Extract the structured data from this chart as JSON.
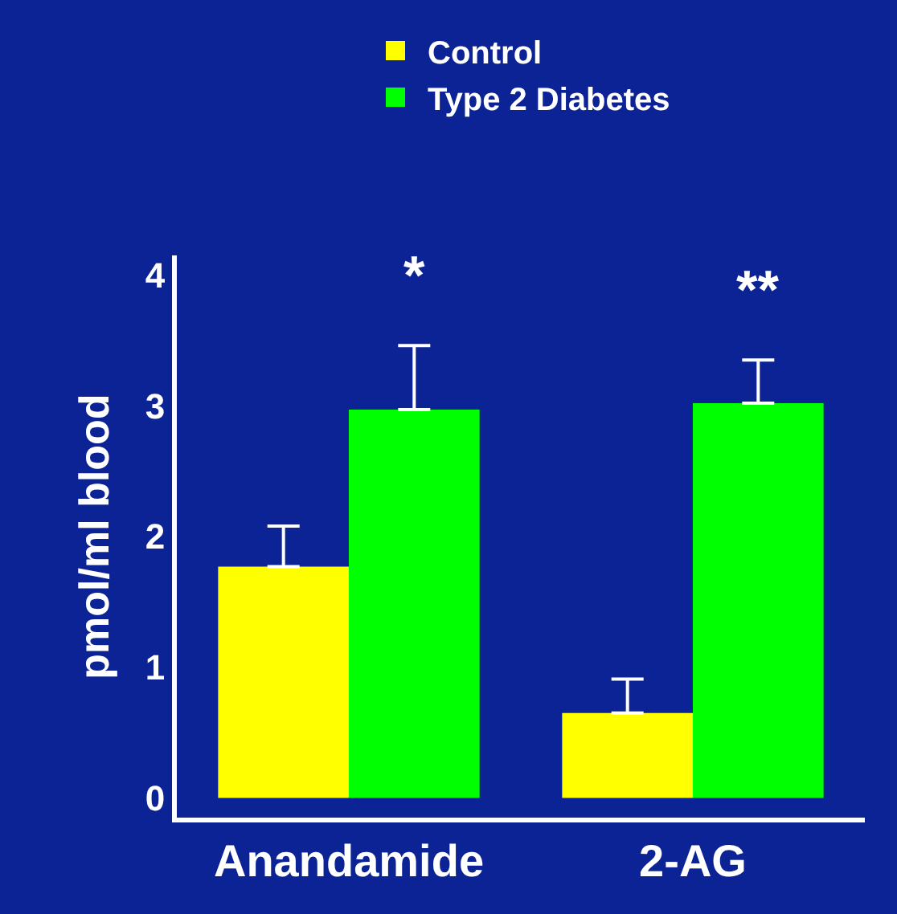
{
  "chart_data": {
    "type": "bar",
    "ylabel": "pmol/ml blood",
    "categories": [
      "Anandamide",
      "2-AG"
    ],
    "series": [
      {
        "name": "Control",
        "color": "#ffff00",
        "values": [
          1.77,
          0.65
        ],
        "errors": [
          [
            1.77,
            2.08
          ],
          [
            0.65,
            0.91
          ]
        ]
      },
      {
        "name": "Type 2 Diabetes",
        "color": "#00ff00",
        "values": [
          2.97,
          3.02
        ],
        "errors": [
          [
            2.97,
            3.46
          ],
          [
            3.02,
            3.35
          ]
        ]
      }
    ],
    "ylim": [
      -0.15,
      4.15
    ],
    "yticks": [
      0,
      1,
      2,
      3,
      4
    ],
    "grid": false,
    "legend": "top",
    "annotations": [
      "*",
      "**"
    ]
  }
}
